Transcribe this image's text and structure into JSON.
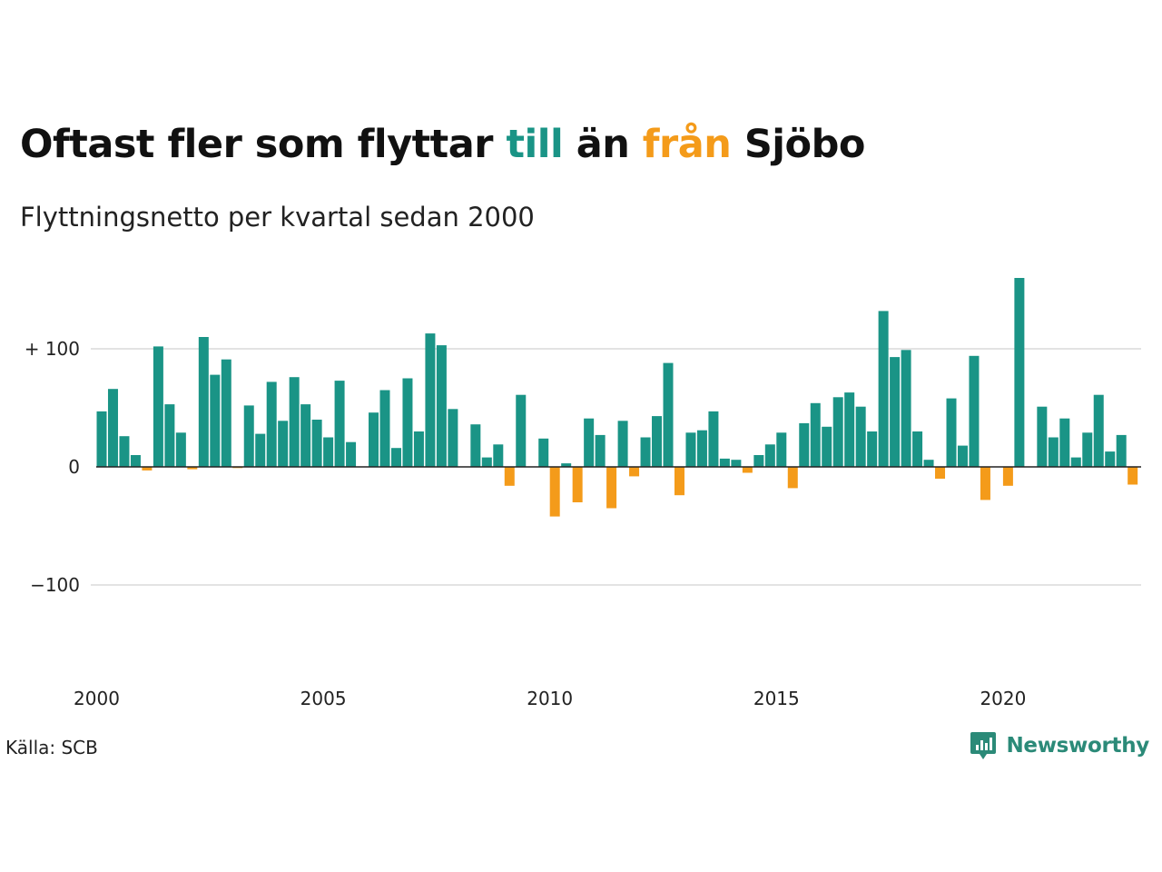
{
  "header": {
    "title_parts": [
      "Oftast fler som flyttar ",
      "till",
      " än ",
      "från",
      " Sjöbo"
    ],
    "subtitle": "Flyttningsnetto per kvartal sedan 2000"
  },
  "footer": {
    "source": "Källa: SCB",
    "brand": "Newsworthy"
  },
  "colors": {
    "positive": "#1a9486",
    "negative": "#f49b1a",
    "grid": "#e3e3e3",
    "brand": "#2b8a78"
  },
  "chart_data": {
    "type": "bar",
    "start_year": 2000,
    "periods_per_year": 4,
    "ylim": [
      -160,
      165
    ],
    "y_ticks": [
      {
        "value": 100,
        "label": "+ 100"
      },
      {
        "value": 0,
        "label": "0"
      },
      {
        "value": -100,
        "label": "−100"
      }
    ],
    "x_ticks": [
      "2000",
      "2005",
      "2010",
      "2015",
      "2020"
    ],
    "grid": true,
    "legend": "none",
    "values": [
      47,
      66,
      26,
      10,
      -3,
      102,
      53,
      29,
      -2,
      110,
      78,
      91,
      -1,
      52,
      28,
      72,
      39,
      76,
      53,
      40,
      25,
      73,
      21,
      0,
      46,
      65,
      16,
      75,
      30,
      113,
      103,
      49,
      0,
      36,
      8,
      19,
      -16,
      61,
      0,
      24,
      -42,
      3,
      -30,
      41,
      27,
      -35,
      39,
      -8,
      25,
      43,
      88,
      -24,
      29,
      31,
      47,
      7,
      6,
      -5,
      10,
      19,
      29,
      -18,
      37,
      54,
      34,
      59,
      63,
      51,
      30,
      132,
      93,
      99,
      30,
      6,
      -10,
      58,
      18,
      94,
      -28,
      0,
      -16,
      160,
      0,
      51,
      25,
      41,
      8,
      29,
      61,
      13,
      27,
      -15
    ]
  }
}
